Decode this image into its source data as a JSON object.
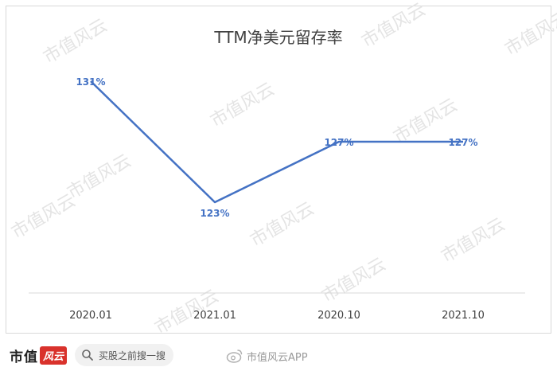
{
  "chart_data": {
    "type": "line",
    "title": "TTM净美元留存率",
    "categories": [
      "2020.01",
      "2021.01",
      "2020.10",
      "2021.10"
    ],
    "series": [
      {
        "values": [
          131,
          123,
          127,
          127
        ],
        "labels": [
          "131%",
          "123%",
          "127%",
          "127%"
        ]
      }
    ],
    "ylim": [
      117,
      133
    ],
    "grid": false,
    "legend": "none",
    "line_color": "#4472c4"
  },
  "watermark": {
    "text": "市值风云"
  },
  "footer": {
    "brand_text": "市值",
    "brand_badge": "风云",
    "search_text": "买股之前搜一搜",
    "weibo_text": "市值风云APP"
  },
  "colors": {
    "accent": "#4472c4",
    "brand": "#d9322c",
    "border": "#d9d9d9"
  },
  "icons": {
    "search": "search-icon",
    "weibo": "weibo-icon"
  }
}
